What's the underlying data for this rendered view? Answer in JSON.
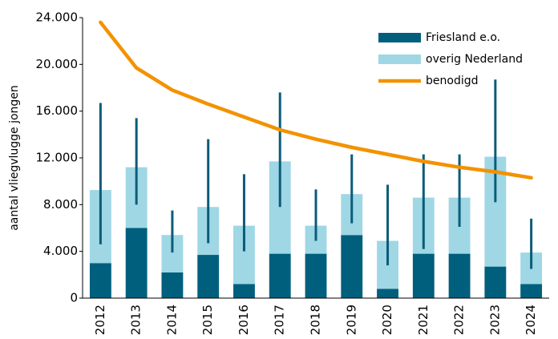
{
  "chart_data": {
    "type": "bar",
    "y_label": "aantal vliegvlugge jongen",
    "categories": [
      "2012",
      "2013",
      "2014",
      "2015",
      "2016",
      "2017",
      "2018",
      "2019",
      "2020",
      "2021",
      "2022",
      "2023",
      "2024"
    ],
    "series": [
      {
        "name": "Friesland e.o.",
        "color": "#005f7d",
        "values": [
          3000,
          6000,
          2200,
          3700,
          1200,
          3800,
          3800,
          5400,
          800,
          3800,
          3800,
          2700,
          1200
        ]
      },
      {
        "name": "overig Nederland",
        "color": "#9fd7e5",
        "values": [
          6250,
          5200,
          3200,
          4100,
          5000,
          7900,
          2400,
          3500,
          4100,
          4800,
          4800,
          9400,
          2700
        ]
      },
      {
        "name": "benodigd",
        "color": "#f39200",
        "kind": "line",
        "values": [
          23600,
          19700,
          17800,
          16600,
          15500,
          14400,
          13600,
          12900,
          12300,
          11700,
          11200,
          10800,
          10300
        ]
      }
    ],
    "error_low": [
      4600,
      8000,
      3900,
      4700,
      4000,
      7800,
      4900,
      6400,
      2800,
      4200,
      6100,
      8200,
      2500
    ],
    "error_high": [
      16700,
      15400,
      7500,
      13600,
      10600,
      17600,
      9300,
      12300,
      9700,
      12300,
      12300,
      18700,
      6800
    ],
    "error_color": "#0b5c78",
    "stacked": true,
    "ylim": [
      0,
      24000
    ],
    "yticks": [
      {
        "value": 0,
        "label": "0"
      },
      {
        "value": 4000,
        "label": "4.000"
      },
      {
        "value": 8000,
        "label": "8.000"
      },
      {
        "value": 12000,
        "label": "12.000"
      },
      {
        "value": 16000,
        "label": "16.000"
      },
      {
        "value": 20000,
        "label": "20.000"
      },
      {
        "value": 24000,
        "label": "24.000"
      }
    ],
    "legend": "top-right"
  }
}
